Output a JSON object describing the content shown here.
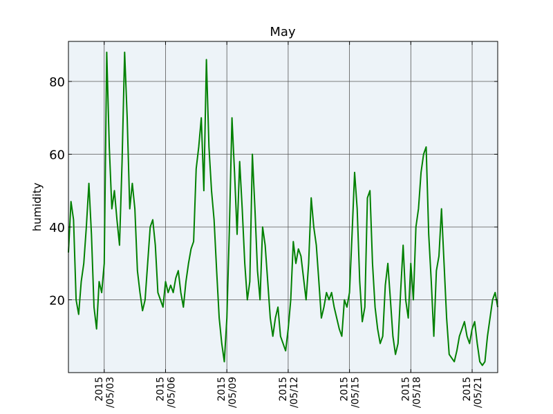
{
  "chart_data": {
    "type": "line",
    "title": "May",
    "xlabel": "",
    "ylabel": "humidity",
    "grid": true,
    "ylim": [
      0,
      91
    ],
    "xlim": [
      "2015-05-01T06:00",
      "2015-05-22T06:00"
    ],
    "y_ticks": [
      20,
      40,
      60,
      80
    ],
    "x_ticks": [
      {
        "date": "2015-05-03",
        "line1": "2015",
        "line2": "/05/03"
      },
      {
        "date": "2015-05-06",
        "line1": "2015",
        "line2": "/05/06"
      },
      {
        "date": "2015-05-09",
        "line1": "2015",
        "line2": "/05/09"
      },
      {
        "date": "2015-05-12",
        "line1": "2015",
        "line2": "/05/12"
      },
      {
        "date": "2015-05-15",
        "line1": "2015",
        "line2": "/05/15"
      },
      {
        "date": "2015-05-18",
        "line1": "2015",
        "line2": "/05/18"
      },
      {
        "date": "2015-05-21",
        "line1": "2015",
        "line2": "/05/21"
      }
    ],
    "colors": {
      "line": "#008000",
      "plot_background": "#edf3f8",
      "grid": "#555555"
    },
    "series": [
      {
        "x": [
          "2015-05-01T06:00",
          "2015-05-01T09:00",
          "2015-05-01T12:00",
          "2015-05-01T15:00",
          "2015-05-01T18:00",
          "2015-05-01T21:00",
          "2015-05-02T00:00",
          "2015-05-02T03:00",
          "2015-05-02T06:00",
          "2015-05-02T09:00",
          "2015-05-02T12:00",
          "2015-05-02T15:00",
          "2015-05-02T18:00",
          "2015-05-02T21:00",
          "2015-05-03T00:00",
          "2015-05-03T03:00",
          "2015-05-03T06:00",
          "2015-05-03T09:00",
          "2015-05-03T12:00",
          "2015-05-03T15:00",
          "2015-05-03T18:00",
          "2015-05-03T21:00",
          "2015-05-04T00:00",
          "2015-05-04T03:00",
          "2015-05-04T06:00",
          "2015-05-04T09:00",
          "2015-05-04T12:00",
          "2015-05-04T15:00",
          "2015-05-04T18:00",
          "2015-05-04T21:00",
          "2015-05-05T00:00",
          "2015-05-05T03:00",
          "2015-05-05T06:00",
          "2015-05-05T09:00",
          "2015-05-05T12:00",
          "2015-05-05T15:00",
          "2015-05-05T18:00",
          "2015-05-05T21:00",
          "2015-05-06T00:00",
          "2015-05-06T03:00",
          "2015-05-06T06:00",
          "2015-05-06T09:00",
          "2015-05-06T12:00",
          "2015-05-06T15:00",
          "2015-05-06T18:00",
          "2015-05-06T21:00",
          "2015-05-07T00:00",
          "2015-05-07T03:00",
          "2015-05-07T06:00",
          "2015-05-07T09:00",
          "2015-05-07T12:00",
          "2015-05-07T15:00",
          "2015-05-07T18:00",
          "2015-05-07T21:00",
          "2015-05-08T00:00",
          "2015-05-08T03:00",
          "2015-05-08T06:00",
          "2015-05-08T09:00",
          "2015-05-08T12:00",
          "2015-05-08T15:00",
          "2015-05-08T18:00",
          "2015-05-08T21:00",
          "2015-05-09T00:00",
          "2015-05-09T03:00",
          "2015-05-09T06:00",
          "2015-05-09T09:00",
          "2015-05-09T12:00",
          "2015-05-09T15:00",
          "2015-05-09T18:00",
          "2015-05-09T21:00",
          "2015-05-10T00:00",
          "2015-05-10T03:00",
          "2015-05-10T06:00",
          "2015-05-10T09:00",
          "2015-05-10T12:00",
          "2015-05-10T15:00",
          "2015-05-10T18:00",
          "2015-05-10T21:00",
          "2015-05-11T00:00",
          "2015-05-11T03:00",
          "2015-05-11T06:00",
          "2015-05-11T09:00",
          "2015-05-11T12:00",
          "2015-05-11T15:00",
          "2015-05-11T18:00",
          "2015-05-11T21:00",
          "2015-05-12T00:00",
          "2015-05-12T03:00",
          "2015-05-12T06:00",
          "2015-05-12T09:00",
          "2015-05-12T12:00",
          "2015-05-12T15:00",
          "2015-05-12T18:00",
          "2015-05-12T21:00",
          "2015-05-13T00:00",
          "2015-05-13T03:00",
          "2015-05-13T06:00",
          "2015-05-13T09:00",
          "2015-05-13T12:00",
          "2015-05-13T15:00",
          "2015-05-13T18:00",
          "2015-05-13T21:00",
          "2015-05-14T00:00",
          "2015-05-14T03:00",
          "2015-05-14T06:00",
          "2015-05-14T09:00",
          "2015-05-14T12:00",
          "2015-05-14T15:00",
          "2015-05-14T18:00",
          "2015-05-14T21:00",
          "2015-05-15T00:00",
          "2015-05-15T03:00",
          "2015-05-15T06:00",
          "2015-05-15T09:00",
          "2015-05-15T12:00",
          "2015-05-15T15:00",
          "2015-05-15T18:00",
          "2015-05-15T21:00",
          "2015-05-16T00:00",
          "2015-05-16T03:00",
          "2015-05-16T06:00",
          "2015-05-16T09:00",
          "2015-05-16T12:00",
          "2015-05-16T15:00",
          "2015-05-16T18:00",
          "2015-05-16T21:00",
          "2015-05-17T00:00",
          "2015-05-17T03:00",
          "2015-05-17T06:00",
          "2015-05-17T09:00",
          "2015-05-17T12:00",
          "2015-05-17T15:00",
          "2015-05-17T18:00",
          "2015-05-17T21:00",
          "2015-05-18T00:00",
          "2015-05-18T03:00",
          "2015-05-18T06:00",
          "2015-05-18T09:00",
          "2015-05-18T12:00",
          "2015-05-18T15:00",
          "2015-05-18T18:00",
          "2015-05-18T21:00",
          "2015-05-19T00:00",
          "2015-05-19T03:00",
          "2015-05-19T06:00",
          "2015-05-19T09:00",
          "2015-05-19T12:00",
          "2015-05-19T15:00",
          "2015-05-19T18:00",
          "2015-05-19T21:00",
          "2015-05-20T00:00",
          "2015-05-20T03:00",
          "2015-05-20T06:00",
          "2015-05-20T09:00",
          "2015-05-20T12:00",
          "2015-05-20T15:00",
          "2015-05-20T18:00",
          "2015-05-20T21:00",
          "2015-05-21T00:00",
          "2015-05-21T03:00",
          "2015-05-21T06:00",
          "2015-05-21T09:00",
          "2015-05-21T12:00",
          "2015-05-21T15:00",
          "2015-05-21T18:00",
          "2015-05-21T21:00",
          "2015-05-22T00:00",
          "2015-05-22T03:00",
          "2015-05-22T06:00"
        ],
        "values": [
          33,
          47,
          42,
          20,
          16,
          25,
          30,
          40,
          52,
          38,
          18,
          12,
          25,
          22,
          30,
          88,
          62,
          45,
          50,
          42,
          35,
          58,
          88,
          70,
          45,
          52,
          45,
          28,
          22,
          17,
          20,
          30,
          40,
          42,
          35,
          22,
          20,
          18,
          25,
          22,
          24,
          22,
          26,
          28,
          22,
          18,
          25,
          30,
          34,
          36,
          56,
          62,
          70,
          50,
          86,
          62,
          50,
          42,
          28,
          15,
          8,
          3,
          15,
          40,
          70,
          55,
          38,
          58,
          45,
          30,
          20,
          25,
          60,
          45,
          28,
          20,
          40,
          35,
          25,
          15,
          10,
          15,
          18,
          10,
          8,
          6,
          12,
          20,
          36,
          30,
          34,
          32,
          26,
          20,
          30,
          48,
          40,
          35,
          25,
          15,
          18,
          22,
          20,
          22,
          18,
          15,
          12,
          10,
          20,
          18,
          22,
          38,
          55,
          45,
          25,
          14,
          18,
          48,
          50,
          30,
          18,
          12,
          8,
          10,
          24,
          30,
          20,
          10,
          5,
          8,
          22,
          35,
          20,
          15,
          30,
          20,
          40,
          45,
          55,
          60,
          62,
          38,
          25,
          10,
          28,
          32,
          45,
          30,
          15,
          5,
          4,
          3,
          6,
          10,
          12,
          14,
          10,
          8,
          12,
          14,
          8,
          3,
          2,
          3,
          10,
          15,
          20,
          22,
          18
        ]
      }
    ]
  }
}
